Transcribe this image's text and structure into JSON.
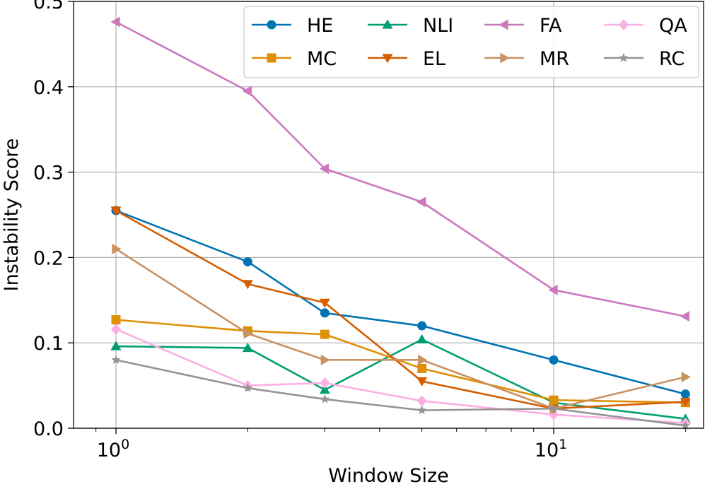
{
  "chart_data": {
    "type": "line",
    "title": "",
    "xlabel": "Window Size",
    "ylabel": "Instability Score",
    "xscale": "log",
    "x": [
      1,
      2,
      3,
      5,
      10,
      20
    ],
    "xlim": [
      0.8,
      22
    ],
    "ylim": [
      0,
      0.5
    ],
    "yticks": [
      {
        "value": 0.0,
        "label": "0.0"
      },
      {
        "value": 0.1,
        "label": "0.1"
      },
      {
        "value": 0.2,
        "label": "0.2"
      },
      {
        "value": 0.3,
        "label": "0.3"
      },
      {
        "value": 0.4,
        "label": "0.4"
      },
      {
        "value": 0.5,
        "label": "0.5"
      }
    ],
    "xticks": [
      {
        "value": 1,
        "base": "10",
        "exp": "0"
      },
      {
        "value": 10,
        "base": "10",
        "exp": "1"
      }
    ],
    "grid": true,
    "legend_position": "top-right",
    "series": [
      {
        "name": "HE",
        "color": "#0173b2",
        "marker": "circle",
        "values": [
          0.255,
          0.195,
          0.135,
          0.12,
          0.08,
          0.04
        ]
      },
      {
        "name": "NLI",
        "color": "#029e73",
        "marker": "triangle-up",
        "values": [
          0.096,
          0.094,
          0.045,
          0.104,
          0.03,
          0.011
        ]
      },
      {
        "name": "FA",
        "color": "#cc78bc",
        "marker": "triangle-left",
        "values": [
          0.476,
          0.395,
          0.304,
          0.265,
          0.162,
          0.131
        ]
      },
      {
        "name": "QA",
        "color": "#fbafe4",
        "marker": "diamond",
        "values": [
          0.116,
          0.05,
          0.053,
          0.032,
          0.016,
          0.006
        ]
      },
      {
        "name": "MC",
        "color": "#de8f05",
        "marker": "square",
        "values": [
          0.127,
          0.114,
          0.11,
          0.07,
          0.033,
          0.03
        ]
      },
      {
        "name": "EL",
        "color": "#d55e00",
        "marker": "triangle-down",
        "values": [
          0.255,
          0.169,
          0.147,
          0.055,
          0.023,
          0.031
        ]
      },
      {
        "name": "MR",
        "color": "#ca9161",
        "marker": "triangle-right",
        "values": [
          0.21,
          0.111,
          0.08,
          0.08,
          0.023,
          0.06
        ]
      },
      {
        "name": "RC",
        "color": "#949494",
        "marker": "star",
        "values": [
          0.08,
          0.047,
          0.034,
          0.021,
          0.023,
          0.003
        ]
      }
    ]
  }
}
